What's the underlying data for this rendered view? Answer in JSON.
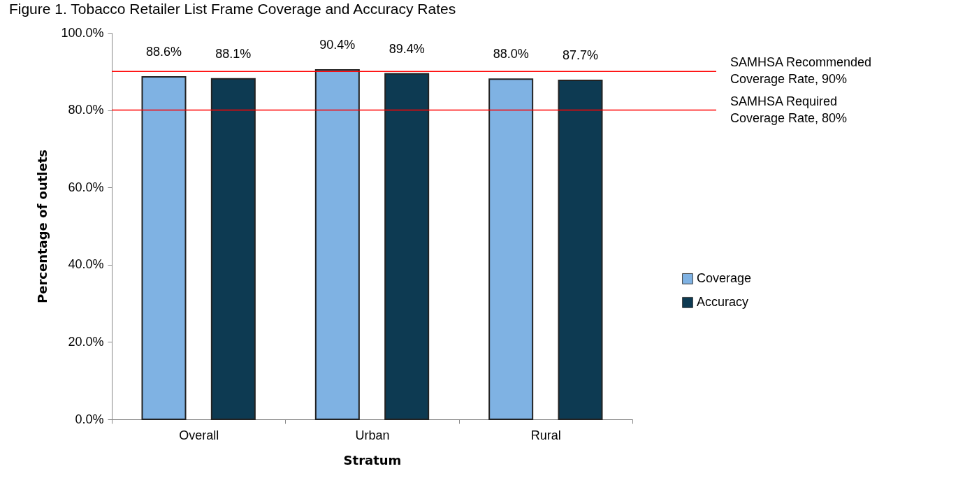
{
  "chart_data": {
    "type": "bar",
    "title": "Figure 1. Tobacco Retailer List Frame Coverage and Accuracy Rates",
    "xlabel": "Stratum",
    "ylabel": "Percentage of outlets",
    "categories": [
      "Overall",
      "Urban",
      "Rural"
    ],
    "series": [
      {
        "name": "Coverage",
        "color": "#7fb2e3",
        "values": [
          88.6,
          90.4,
          88.0
        ],
        "value_labels": [
          "88.6%",
          "90.4%",
          "88.0%"
        ]
      },
      {
        "name": "Accuracy",
        "color": "#0d3a52",
        "values": [
          88.1,
          89.4,
          87.7
        ],
        "value_labels": [
          "88.1%",
          "89.4%",
          "87.7%"
        ]
      }
    ],
    "ylim": [
      0,
      100
    ],
    "yticks": [
      {
        "value": 0,
        "label": "0.0%"
      },
      {
        "value": 20,
        "label": "20.0%"
      },
      {
        "value": 40,
        "label": "40.0%"
      },
      {
        "value": 60,
        "label": "60.0%"
      },
      {
        "value": 80,
        "label": "80.0%"
      },
      {
        "value": 100,
        "label": "100.0%"
      }
    ],
    "ref_lines": [
      {
        "axis": "y",
        "value": 90,
        "label": "SAMHSA Recommended Coverage Rate, 90%",
        "color": "#ff0000"
      },
      {
        "axis": "y",
        "value": 80,
        "label": "SAMHSA Required Coverage Rate, 80%",
        "color": "#ff0000"
      }
    ],
    "legend": "right",
    "grid": false
  }
}
